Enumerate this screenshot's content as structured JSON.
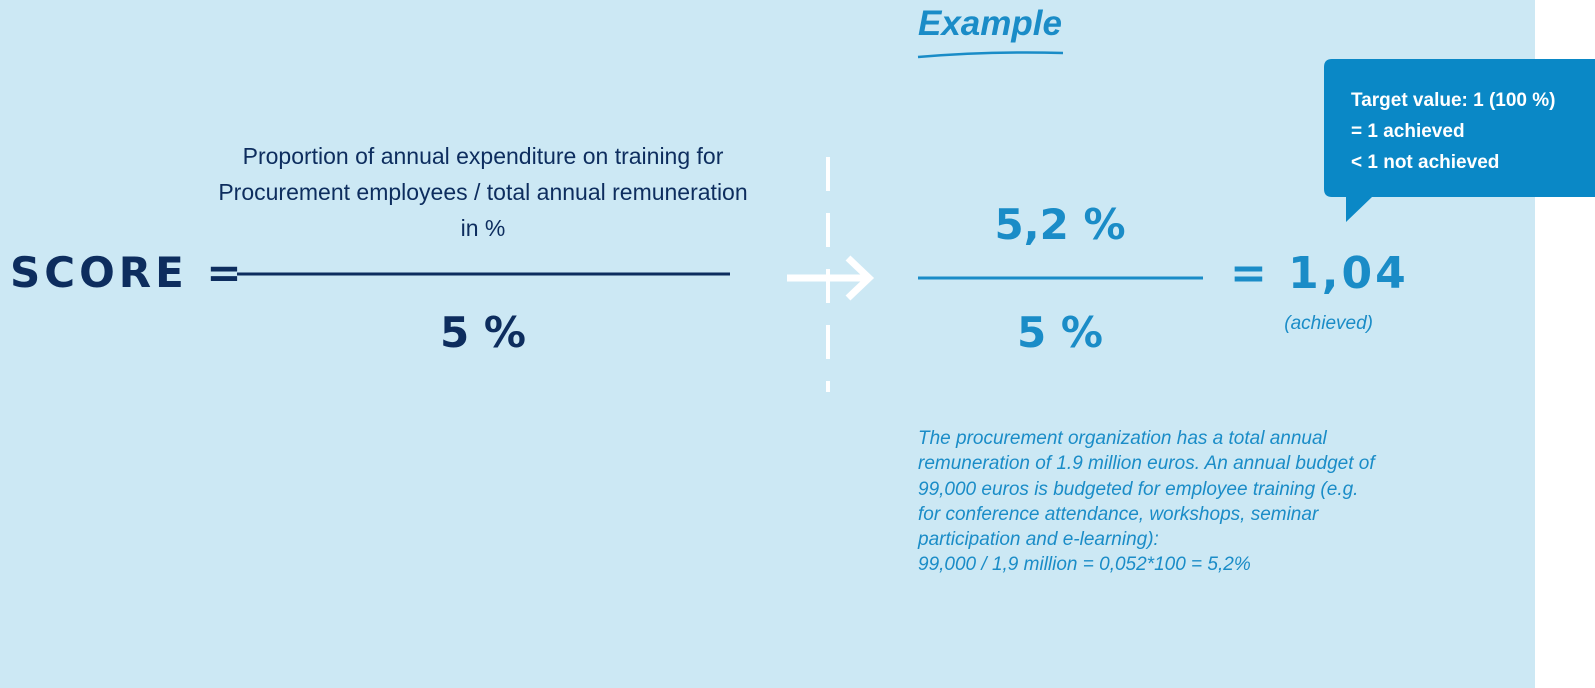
{
  "example_title": "Example",
  "formula": {
    "label": "SCORE =",
    "numerator": "Proportion of annual expenditure on training for Procurement employees / total annual remuneration in %",
    "denominator": "5 %"
  },
  "example": {
    "numerator": "5,2 %",
    "denominator": "5 %",
    "result": "= 1,04",
    "result_note": "(achieved)"
  },
  "callout": {
    "lines": [
      "Target value: 1 (100 %)",
      "= 1 achieved",
      "< 1 not achieved"
    ]
  },
  "description": {
    "lines": [
      "The procurement organization has a total annual",
      "remuneration of 1.9 million euros. An annual budget of",
      "99,000 euros is budgeted for employee training (e.g.",
      "for conference attendance, workshops, seminar",
      "participation and e-learning):",
      "99,000 / 1,9 million = 0,052*100 = 5,2%"
    ]
  }
}
